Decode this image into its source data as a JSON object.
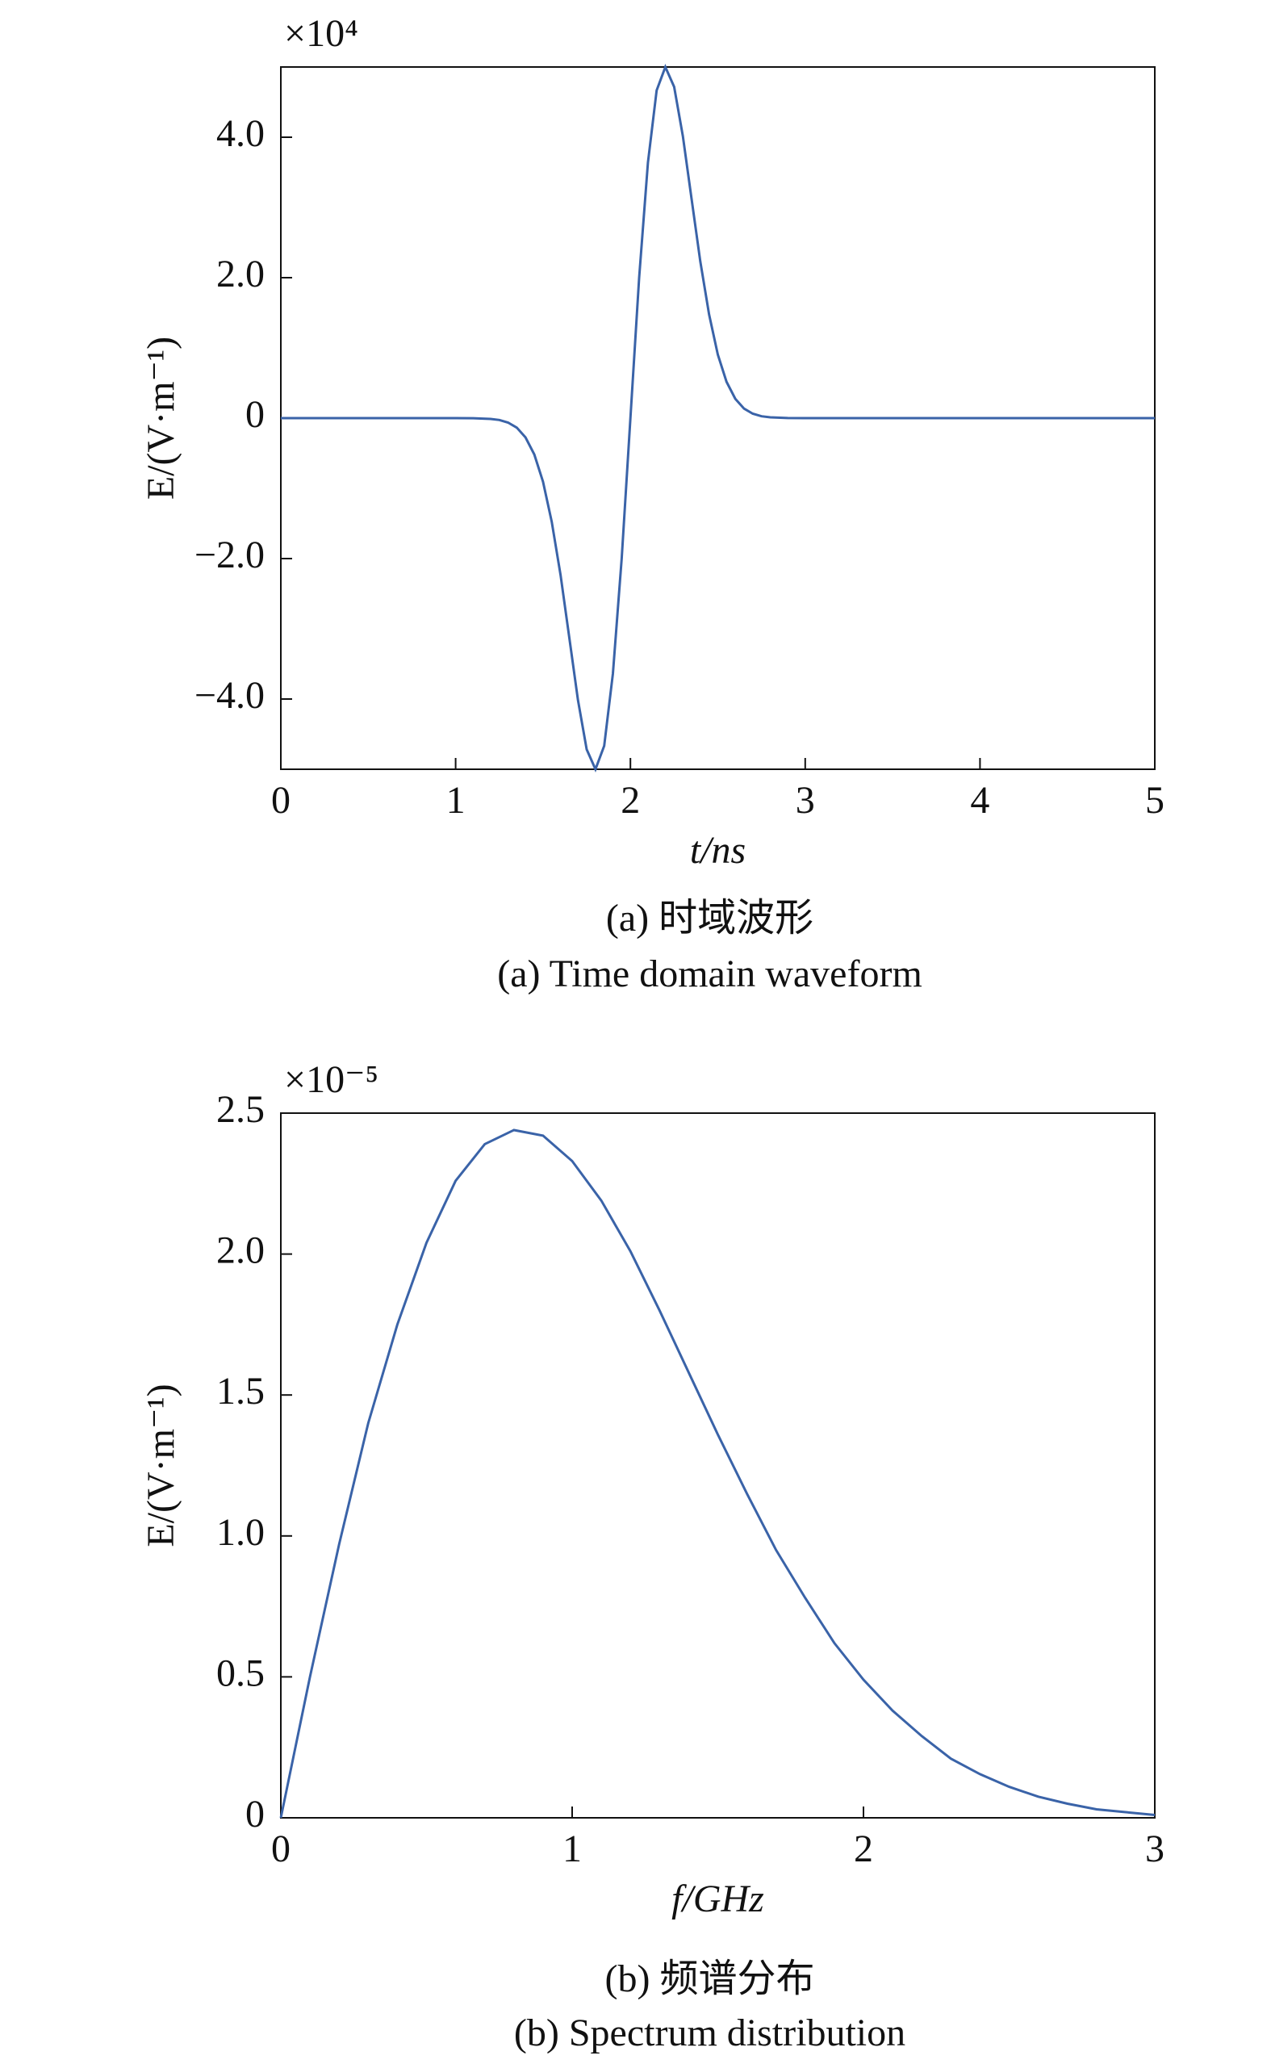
{
  "chart_data": [
    {
      "type": "line",
      "multiplier": "×10⁴",
      "xlabel": "t/ns",
      "ylabel": "E/(V·m⁻¹)",
      "caption_cn": "(a) 时域波形",
      "caption_en": "(a) Time domain waveform",
      "xlim": [
        0,
        5
      ],
      "xticks": [
        0,
        1,
        2,
        3,
        4,
        5
      ],
      "ylim": [
        -5,
        5
      ],
      "yticks": [
        {
          "value": -4,
          "label": "−4.0"
        },
        {
          "value": -2,
          "label": "−2.0"
        },
        0,
        {
          "value": 2,
          "label": "2.0"
        },
        {
          "value": 4,
          "label": "4.0"
        }
      ],
      "series": [
        {
          "color": "#3a63a8",
          "x": [
            0,
            0.5,
            1.0,
            1.1,
            1.2,
            1.25,
            1.3,
            1.35,
            1.4,
            1.45,
            1.5,
            1.55,
            1.6,
            1.65,
            1.7,
            1.75,
            1.8,
            1.85,
            1.9,
            1.95,
            2.0,
            2.05,
            2.1,
            2.15,
            2.2,
            2.25,
            2.3,
            2.35,
            2.4,
            2.45,
            2.5,
            2.55,
            2.6,
            2.65,
            2.7,
            2.75,
            2.8,
            2.9,
            3.0,
            4.0,
            5.0
          ],
          "values": [
            0,
            0,
            0,
            -0.001,
            -0.011,
            -0.027,
            -0.063,
            -0.136,
            -0.275,
            -0.517,
            -0.906,
            -1.476,
            -2.231,
            -3.121,
            -4.015,
            -4.717,
            -5,
            -4.667,
            -3.638,
            -1.997,
            0,
            1.997,
            3.638,
            4.667,
            5,
            4.717,
            4.015,
            3.121,
            2.231,
            1.476,
            0.906,
            0.517,
            0.275,
            0.136,
            0.063,
            0.027,
            0.011,
            0.001,
            0,
            0,
            0
          ]
        }
      ]
    },
    {
      "type": "line",
      "multiplier": "×10⁻⁵",
      "xlabel": "f/GHz",
      "ylabel": "E/(V·m⁻¹)",
      "caption_cn": "(b) 频谱分布",
      "caption_en": "(b) Spectrum distribution",
      "xlim": [
        0,
        3
      ],
      "xticks": [
        0,
        1,
        2,
        3
      ],
      "ylim": [
        0,
        2.5
      ],
      "yticks": [
        0,
        0.5,
        {
          "value": 1,
          "label": "1.0"
        },
        1.5,
        {
          "value": 2,
          "label": "2.0"
        },
        2.5
      ],
      "series": [
        {
          "color": "#3a63a8",
          "x": [
            0,
            0.1,
            0.2,
            0.3,
            0.4,
            0.5,
            0.6,
            0.7,
            0.8,
            0.9,
            1.0,
            1.1,
            1.2,
            1.3,
            1.4,
            1.5,
            1.6,
            1.7,
            1.8,
            1.9,
            2.0,
            2.1,
            2.2,
            2.3,
            2.4,
            2.5,
            2.6,
            2.7,
            2.8,
            2.9,
            3.0
          ],
          "values": [
            0,
            0.5,
            0.97,
            1.4,
            1.75,
            2.04,
            2.26,
            2.39,
            2.44,
            2.42,
            2.33,
            2.19,
            2.01,
            1.8,
            1.58,
            1.36,
            1.15,
            0.95,
            0.78,
            0.62,
            0.49,
            0.38,
            0.29,
            0.21,
            0.155,
            0.11,
            0.075,
            0.05,
            0.03,
            0.02,
            0.01
          ]
        }
      ]
    }
  ]
}
